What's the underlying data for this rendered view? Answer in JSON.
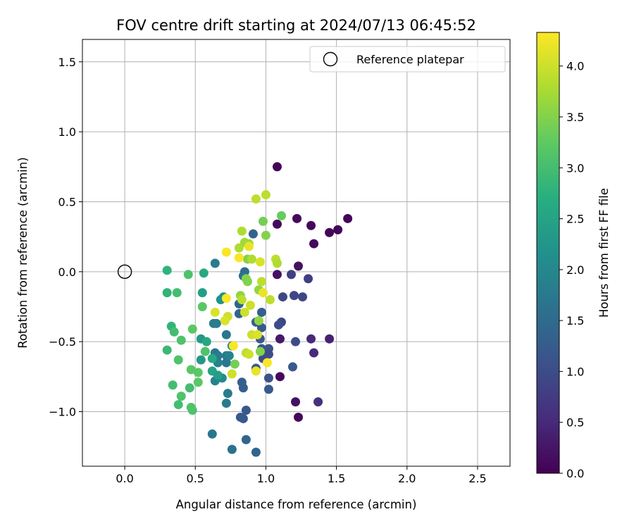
{
  "chart_data": {
    "type": "scatter",
    "title": "FOV centre drift starting at 2024/07/13 06:45:52",
    "xlabel": "Angular distance from reference (arcmin)",
    "ylabel": "Rotation from reference (arcmin)",
    "xlim": [
      -0.3,
      2.73
    ],
    "ylim": [
      -1.39,
      1.66
    ],
    "xticks": [
      0.0,
      0.5,
      1.0,
      1.5,
      2.0,
      2.5
    ],
    "xtick_labels": [
      "0.0",
      "0.5",
      "1.0",
      "1.5",
      "2.0",
      "2.5"
    ],
    "yticks": [
      -1.0,
      -0.5,
      0.0,
      0.5,
      1.0,
      1.5
    ],
    "ytick_labels": [
      "−1.0",
      "−0.5",
      "0.0",
      "0.5",
      "1.0",
      "1.5"
    ],
    "grid": true,
    "legend": {
      "position": "top-right",
      "entries": [
        {
          "label": "Reference platepar",
          "marker": "open-circle"
        }
      ]
    },
    "reference_point": {
      "x": 0.0,
      "y": 0.0
    },
    "colorbar": {
      "label": "Hours from first FF file",
      "range": [
        0.0,
        4.33
      ],
      "ticks": [
        0.0,
        0.5,
        1.0,
        1.5,
        2.0,
        2.5,
        3.0,
        3.5,
        4.0
      ],
      "tick_labels": [
        "0.0",
        "0.5",
        "1.0",
        "1.5",
        "2.0",
        "2.5",
        "3.0",
        "3.5",
        "4.0"
      ],
      "colormap": "viridis"
    },
    "points": [
      {
        "x": 1.08,
        "y": 0.75,
        "c": 0.05
      },
      {
        "x": 1.58,
        "y": 0.38,
        "c": 0.05
      },
      {
        "x": 1.51,
        "y": 0.3,
        "c": 0.05
      },
      {
        "x": 1.45,
        "y": 0.28,
        "c": 0.05
      },
      {
        "x": 1.22,
        "y": 0.38,
        "c": 0.1
      },
      {
        "x": 1.32,
        "y": 0.33,
        "c": 0.1
      },
      {
        "x": 1.08,
        "y": 0.34,
        "c": 0.1
      },
      {
        "x": 1.34,
        "y": 0.2,
        "c": 0.1
      },
      {
        "x": 1.08,
        "y": -0.02,
        "c": 0.2
      },
      {
        "x": 1.23,
        "y": 0.04,
        "c": 0.2
      },
      {
        "x": 1.21,
        "y": -0.93,
        "c": 0.2
      },
      {
        "x": 1.23,
        "y": -1.04,
        "c": 0.1
      },
      {
        "x": 1.1,
        "y": -0.75,
        "c": 0.1
      },
      {
        "x": 1.1,
        "y": -0.48,
        "c": 0.3
      },
      {
        "x": 1.45,
        "y": -0.48,
        "c": 0.4
      },
      {
        "x": 1.32,
        "y": -0.48,
        "c": 0.5
      },
      {
        "x": 1.34,
        "y": -0.58,
        "c": 0.5
      },
      {
        "x": 1.37,
        "y": -0.93,
        "c": 0.6
      },
      {
        "x": 1.3,
        "y": -0.05,
        "c": 0.8
      },
      {
        "x": 1.18,
        "y": -0.02,
        "c": 0.8
      },
      {
        "x": 1.12,
        "y": -0.18,
        "c": 0.9
      },
      {
        "x": 1.2,
        "y": -0.17,
        "c": 0.9
      },
      {
        "x": 1.26,
        "y": -0.18,
        "c": 0.9
      },
      {
        "x": 1.11,
        "y": -0.36,
        "c": 0.9
      },
      {
        "x": 1.09,
        "y": -0.38,
        "c": 1.0
      },
      {
        "x": 1.21,
        "y": -0.5,
        "c": 1.0
      },
      {
        "x": 1.19,
        "y": -0.68,
        "c": 1.2
      },
      {
        "x": 1.02,
        "y": -0.55,
        "c": 1.1
      },
      {
        "x": 1.02,
        "y": -0.59,
        "c": 1.0
      },
      {
        "x": 1.02,
        "y": -0.76,
        "c": 1.1
      },
      {
        "x": 1.02,
        "y": -0.84,
        "c": 1.2
      },
      {
        "x": 0.97,
        "y": -0.29,
        "c": 1.3
      },
      {
        "x": 0.97,
        "y": -0.4,
        "c": 1.2
      },
      {
        "x": 0.96,
        "y": -0.48,
        "c": 1.2
      },
      {
        "x": 0.97,
        "y": -0.55,
        "c": 1.1
      },
      {
        "x": 0.98,
        "y": -0.62,
        "c": 1.0
      },
      {
        "x": 0.93,
        "y": -0.69,
        "c": 1.2
      },
      {
        "x": 0.93,
        "y": -0.36,
        "c": 1.3
      },
      {
        "x": 0.91,
        "y": 0.27,
        "c": 1.4
      },
      {
        "x": 0.85,
        "y": 0.0,
        "c": 1.5
      },
      {
        "x": 0.84,
        "y": -0.03,
        "c": 1.6
      },
      {
        "x": 0.81,
        "y": -0.23,
        "c": 1.4
      },
      {
        "x": 0.81,
        "y": -0.3,
        "c": 1.4
      },
      {
        "x": 0.83,
        "y": -0.79,
        "c": 1.3
      },
      {
        "x": 0.84,
        "y": -0.83,
        "c": 1.3
      },
      {
        "x": 0.86,
        "y": -0.99,
        "c": 1.2
      },
      {
        "x": 0.82,
        "y": -1.04,
        "c": 1.2
      },
      {
        "x": 0.84,
        "y": -1.05,
        "c": 1.2
      },
      {
        "x": 0.86,
        "y": -1.2,
        "c": 1.4
      },
      {
        "x": 0.93,
        "y": -1.29,
        "c": 1.4
      },
      {
        "x": 0.76,
        "y": -1.27,
        "c": 1.6
      },
      {
        "x": 0.62,
        "y": -1.16,
        "c": 1.7
      },
      {
        "x": 0.72,
        "y": -0.94,
        "c": 1.8
      },
      {
        "x": 0.73,
        "y": -0.87,
        "c": 1.8
      },
      {
        "x": 0.72,
        "y": -0.45,
        "c": 1.7
      },
      {
        "x": 0.72,
        "y": -0.6,
        "c": 1.8
      },
      {
        "x": 0.72,
        "y": -0.65,
        "c": 1.7
      },
      {
        "x": 0.74,
        "y": -0.6,
        "c": 1.9
      },
      {
        "x": 0.76,
        "y": -0.53,
        "c": 2.0
      },
      {
        "x": 0.63,
        "y": -0.37,
        "c": 1.8
      },
      {
        "x": 0.65,
        "y": -0.37,
        "c": 1.8
      },
      {
        "x": 0.64,
        "y": 0.06,
        "c": 1.8
      },
      {
        "x": 0.64,
        "y": -0.58,
        "c": 1.7
      },
      {
        "x": 0.66,
        "y": -0.65,
        "c": 1.9
      },
      {
        "x": 0.66,
        "y": -0.6,
        "c": 1.8
      },
      {
        "x": 0.64,
        "y": -0.78,
        "c": 1.9
      },
      {
        "x": 0.69,
        "y": -0.76,
        "c": 2.0
      },
      {
        "x": 0.68,
        "y": -0.2,
        "c": 2.2
      },
      {
        "x": 0.7,
        "y": -0.18,
        "c": 2.2
      },
      {
        "x": 0.55,
        "y": -0.15,
        "c": 2.4
      },
      {
        "x": 0.54,
        "y": -0.48,
        "c": 2.3
      },
      {
        "x": 0.54,
        "y": -0.63,
        "c": 2.3
      },
      {
        "x": 0.62,
        "y": -0.71,
        "c": 2.5
      },
      {
        "x": 0.66,
        "y": -0.74,
        "c": 2.4
      },
      {
        "x": 0.62,
        "y": -0.62,
        "c": 2.6
      },
      {
        "x": 0.58,
        "y": -0.5,
        "c": 2.6
      },
      {
        "x": 0.56,
        "y": -0.01,
        "c": 2.6
      },
      {
        "x": 0.3,
        "y": 0.01,
        "c": 2.8
      },
      {
        "x": 0.3,
        "y": -0.15,
        "c": 2.8
      },
      {
        "x": 0.33,
        "y": -0.39,
        "c": 2.8
      },
      {
        "x": 0.3,
        "y": -0.56,
        "c": 2.9
      },
      {
        "x": 0.37,
        "y": -0.15,
        "c": 3.0
      },
      {
        "x": 0.35,
        "y": -0.43,
        "c": 3.0
      },
      {
        "x": 0.4,
        "y": -0.49,
        "c": 3.1
      },
      {
        "x": 0.38,
        "y": -0.63,
        "c": 3.1
      },
      {
        "x": 0.34,
        "y": -0.81,
        "c": 3.0
      },
      {
        "x": 0.4,
        "y": -0.89,
        "c": 3.1
      },
      {
        "x": 0.38,
        "y": -0.95,
        "c": 3.0
      },
      {
        "x": 0.47,
        "y": -0.97,
        "c": 3.1
      },
      {
        "x": 0.48,
        "y": -0.99,
        "c": 3.1
      },
      {
        "x": 0.46,
        "y": -0.83,
        "c": 3.0
      },
      {
        "x": 0.47,
        "y": -0.7,
        "c": 3.2
      },
      {
        "x": 0.52,
        "y": -0.72,
        "c": 3.2
      },
      {
        "x": 0.52,
        "y": -0.79,
        "c": 3.2
      },
      {
        "x": 0.57,
        "y": -0.57,
        "c": 3.1
      },
      {
        "x": 0.48,
        "y": -0.41,
        "c": 3.2
      },
      {
        "x": 0.55,
        "y": -0.25,
        "c": 3.2
      },
      {
        "x": 0.45,
        "y": -0.02,
        "c": 3.1
      },
      {
        "x": 0.98,
        "y": 0.36,
        "c": 3.4
      },
      {
        "x": 1.11,
        "y": 0.4,
        "c": 3.3
      },
      {
        "x": 1.0,
        "y": 0.26,
        "c": 3.5
      },
      {
        "x": 0.87,
        "y": 0.09,
        "c": 3.5
      },
      {
        "x": 0.86,
        "y": -0.05,
        "c": 3.5
      },
      {
        "x": 0.87,
        "y": -0.07,
        "c": 3.5
      },
      {
        "x": 0.82,
        "y": -0.17,
        "c": 3.6
      },
      {
        "x": 0.95,
        "y": -0.13,
        "c": 3.6
      },
      {
        "x": 0.95,
        "y": -0.35,
        "c": 3.6
      },
      {
        "x": 0.96,
        "y": -0.57,
        "c": 3.5
      },
      {
        "x": 0.78,
        "y": -0.66,
        "c": 3.4
      },
      {
        "x": 0.88,
        "y": 0.2,
        "c": 3.7
      },
      {
        "x": 0.83,
        "y": 0.29,
        "c": 3.8
      },
      {
        "x": 0.81,
        "y": 0.17,
        "c": 3.8
      },
      {
        "x": 0.85,
        "y": 0.21,
        "c": 3.7
      },
      {
        "x": 0.9,
        "y": 0.09,
        "c": 3.8
      },
      {
        "x": 0.93,
        "y": 0.52,
        "c": 3.9
      },
      {
        "x": 1.0,
        "y": 0.55,
        "c": 3.9
      },
      {
        "x": 1.07,
        "y": 0.09,
        "c": 3.9
      },
      {
        "x": 1.08,
        "y": 0.06,
        "c": 3.8
      },
      {
        "x": 0.97,
        "y": -0.07,
        "c": 3.9
      },
      {
        "x": 1.03,
        "y": -0.2,
        "c": 3.9
      },
      {
        "x": 0.83,
        "y": -0.2,
        "c": 3.9
      },
      {
        "x": 0.85,
        "y": -0.29,
        "c": 4.0
      },
      {
        "x": 0.89,
        "y": -0.24,
        "c": 4.0
      },
      {
        "x": 0.73,
        "y": -0.32,
        "c": 4.0
      },
      {
        "x": 0.71,
        "y": -0.35,
        "c": 4.1
      },
      {
        "x": 0.64,
        "y": -0.29,
        "c": 4.1
      },
      {
        "x": 0.86,
        "y": -0.58,
        "c": 3.9
      },
      {
        "x": 0.88,
        "y": -0.59,
        "c": 4.0
      },
      {
        "x": 0.9,
        "y": -0.45,
        "c": 4.0
      },
      {
        "x": 0.94,
        "y": -0.45,
        "c": 4.1
      },
      {
        "x": 0.76,
        "y": -0.73,
        "c": 4.0
      },
      {
        "x": 0.88,
        "y": 0.18,
        "c": 4.2
      },
      {
        "x": 0.81,
        "y": 0.1,
        "c": 4.3
      },
      {
        "x": 0.72,
        "y": 0.14,
        "c": 4.3
      },
      {
        "x": 0.72,
        "y": -0.19,
        "c": 4.3
      },
      {
        "x": 0.96,
        "y": 0.07,
        "c": 4.1
      },
      {
        "x": 0.98,
        "y": -0.15,
        "c": 4.2
      },
      {
        "x": 0.77,
        "y": -0.53,
        "c": 4.3
      },
      {
        "x": 1.01,
        "y": -0.65,
        "c": 4.3
      },
      {
        "x": 0.93,
        "y": -0.71,
        "c": 4.2
      }
    ]
  }
}
